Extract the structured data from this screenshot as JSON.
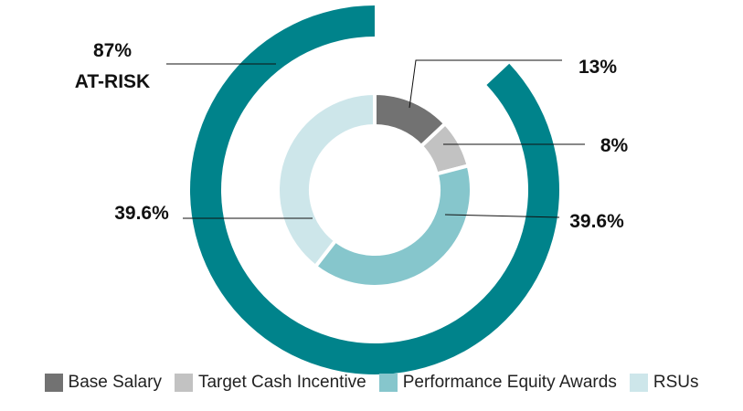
{
  "chart_data": {
    "type": "pie",
    "title": "",
    "outer_ring": {
      "series": [
        {
          "value": 87,
          "label_lines": [
            "87%",
            "AT-RISK"
          ],
          "color": "#00838B"
        },
        {
          "value": 13,
          "label_lines": [],
          "color": "#FFFFFF"
        }
      ]
    },
    "inner_ring": {
      "categories": [
        "Base Salary",
        "Target Cash Incentive",
        "Performance Equity Awards",
        "RSUs"
      ],
      "values": [
        13,
        8,
        39.6,
        39.6
      ],
      "labels": [
        "13%",
        "8%",
        "39.6%",
        "39.6%"
      ],
      "colors": [
        "#727272",
        "#C2C2C2",
        "#86C6CC",
        "#CDE6EA"
      ]
    },
    "legend": {
      "placement": "bottom",
      "items": [
        {
          "label": "Base Salary",
          "color": "#727272"
        },
        {
          "label": "Target Cash Incentive",
          "color": "#C2C2C2"
        },
        {
          "label": "Performance Equity Awards",
          "color": "#86C6CC"
        },
        {
          "label": "RSUs",
          "color": "#CDE6EA"
        }
      ]
    }
  }
}
